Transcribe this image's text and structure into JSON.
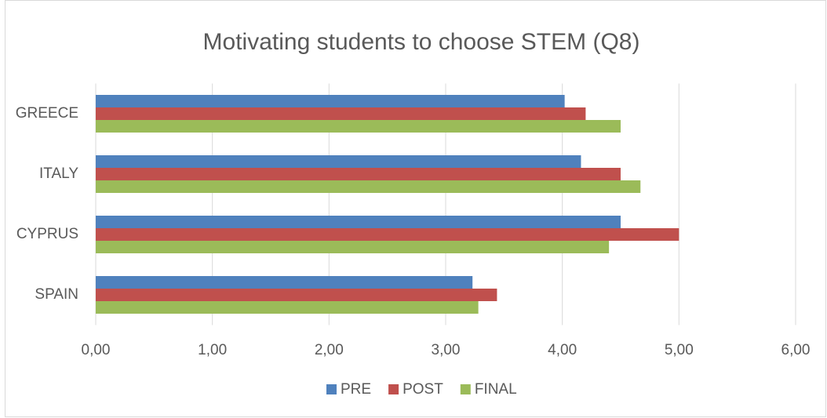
{
  "chart_data": {
    "type": "hbar",
    "title": "Motivating students to choose STEM (Q8)",
    "categories": [
      "GREECE",
      "ITALY",
      "CYPRUS",
      "SPAIN"
    ],
    "series": [
      {
        "name": "PRE",
        "color": "#4f81bd",
        "values": [
          4.02,
          4.16,
          4.5,
          3.23
        ]
      },
      {
        "name": "POST",
        "color": "#c0504d",
        "values": [
          4.2,
          4.5,
          5.0,
          3.44
        ]
      },
      {
        "name": "FINAL",
        "color": "#9bbb59",
        "values": [
          4.5,
          4.67,
          4.4,
          3.28
        ]
      }
    ],
    "xlim": [
      0,
      6
    ],
    "xticks": [
      {
        "value": 0,
        "label": "0,00"
      },
      {
        "value": 1,
        "label": "1,00"
      },
      {
        "value": 2,
        "label": "2,00"
      },
      {
        "value": 3,
        "label": "3,00"
      },
      {
        "value": 4,
        "label": "4,00"
      },
      {
        "value": 5,
        "label": "5,00"
      },
      {
        "value": 6,
        "label": "6,00"
      }
    ],
    "grid": true,
    "legend": "bottom"
  }
}
